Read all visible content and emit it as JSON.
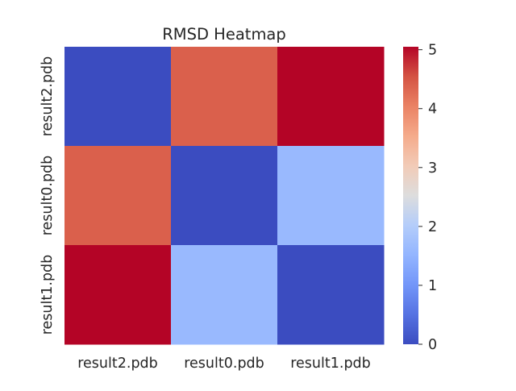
{
  "chart_data": {
    "type": "heatmap",
    "title": "RMSD Heatmap",
    "x_labels": [
      "result2.pdb",
      "result0.pdb",
      "result1.pdb"
    ],
    "y_labels": [
      "result2.pdb",
      "result0.pdb",
      "result1.pdb"
    ],
    "values": [
      [
        0.0,
        4.4,
        5.05
      ],
      [
        4.4,
        0.0,
        1.6
      ],
      [
        5.05,
        1.6,
        0.0
      ]
    ],
    "colormap": "coolwarm",
    "colorbar": {
      "min": 0,
      "max": 5.05,
      "ticks": [
        0,
        1,
        2,
        3,
        4,
        5
      ],
      "tick_labels": [
        "0",
        "1",
        "2",
        "3",
        "4",
        "5"
      ]
    },
    "grid": false,
    "colors": {
      "low": "#3b4cc0",
      "mid": "#dddddd",
      "high": "#b40426",
      "text": "#262626",
      "background": "#ffffff"
    }
  }
}
